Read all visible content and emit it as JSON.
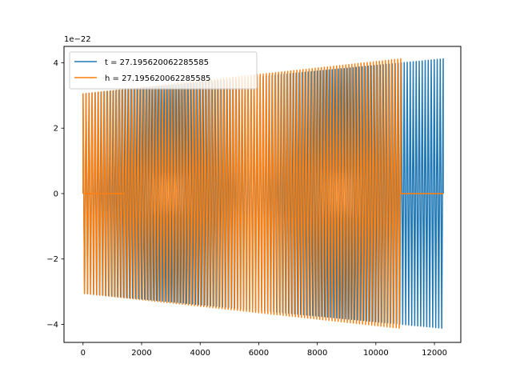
{
  "chart_data": {
    "type": "line",
    "title": "",
    "xlabel": "",
    "ylabel": "",
    "y_scale_label": "1e−22",
    "xlim": [
      -650,
      12900
    ],
    "ylim": [
      -4.55,
      4.5
    ],
    "x_ticks": [
      0,
      2000,
      4000,
      6000,
      8000,
      10000,
      12000
    ],
    "x_tick_labels": [
      "0",
      "2000",
      "4000",
      "6000",
      "8000",
      "10000",
      "12000"
    ],
    "y_ticks": [
      -4,
      -2,
      0,
      2,
      4
    ],
    "y_tick_labels": [
      "−4",
      "−2",
      "0",
      "2",
      "4"
    ],
    "grid": false,
    "legend_position": "top-left",
    "series": [
      {
        "name": "t = 27.195620062285585",
        "color": "#1f77b4",
        "segments": [
          {
            "x_start": 0,
            "x_end": 12300,
            "amp_start": 3.05,
            "amp_end": 4.12,
            "cycles": 120
          }
        ]
      },
      {
        "name": "h = 27.195620062285585",
        "color": "#ff7f0e",
        "segments": [
          {
            "x_start": 0,
            "x_end": 1450,
            "flat": 0
          },
          {
            "x_start": 0,
            "x_end": 10850,
            "amp_start": 3.05,
            "amp_end": 4.12,
            "cycles": 104
          },
          {
            "x_start": 10850,
            "x_end": 12300,
            "flat": 0
          }
        ]
      }
    ]
  }
}
